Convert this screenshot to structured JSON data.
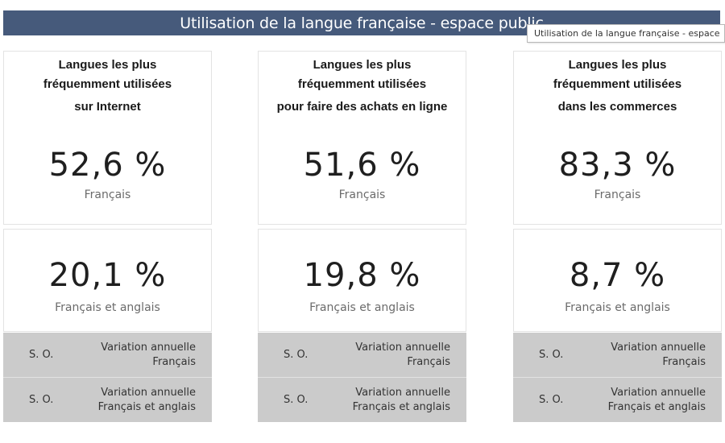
{
  "header": {
    "title": "Utilisation de la langue française - espace public",
    "tooltip": "Utilisation de la langue française  - espace"
  },
  "columns": [
    {
      "heading": [
        "Langues les plus",
        "fréquemment utilisées",
        "sur Internet"
      ],
      "primary": {
        "value": "52,6 %",
        "label": "Français"
      },
      "secondary": {
        "value": "20,1 %",
        "label": "Français et anglais"
      },
      "variations": [
        {
          "value": "S. O.",
          "label_line1": "Variation annuelle",
          "label_line2": "Français"
        },
        {
          "value": "S. O.",
          "label_line1": "Variation annuelle",
          "label_line2": "Français et anglais"
        }
      ]
    },
    {
      "heading": [
        "Langues les plus",
        "fréquemment utilisées",
        "pour faire des achats en ligne"
      ],
      "primary": {
        "value": "51,6 %",
        "label": "Français"
      },
      "secondary": {
        "value": "19,8 %",
        "label": "Français et anglais"
      },
      "variations": [
        {
          "value": "S. O.",
          "label_line1": "Variation annuelle",
          "label_line2": "Français"
        },
        {
          "value": "S. O.",
          "label_line1": "Variation annuelle",
          "label_line2": "Français et anglais"
        }
      ]
    },
    {
      "heading": [
        "Langues les plus",
        "fréquemment utilisées",
        "dans les commerces"
      ],
      "primary": {
        "value": "83,3 %",
        "label": "Français"
      },
      "secondary": {
        "value": "8,7 %",
        "label": "Français et anglais"
      },
      "variations": [
        {
          "value": "S. O.",
          "label_line1": "Variation annuelle",
          "label_line2": "Français"
        },
        {
          "value": "S. O.",
          "label_line1": "Variation annuelle",
          "label_line2": "Français et anglais"
        }
      ]
    }
  ],
  "colors": {
    "title_bar": "#465a7b",
    "variation_bg": "#cbcbcb"
  }
}
